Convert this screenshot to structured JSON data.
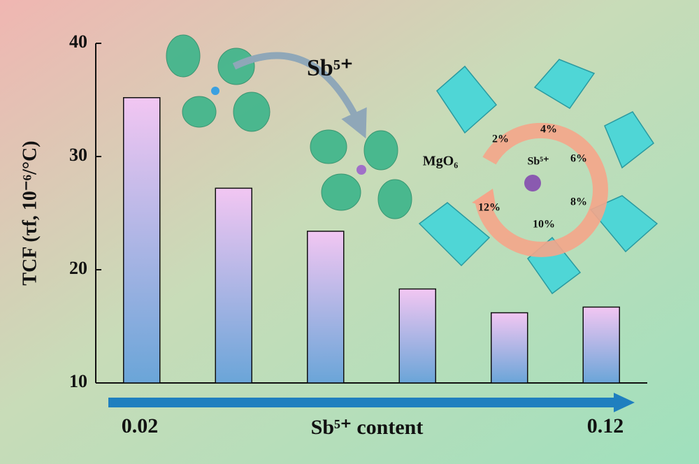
{
  "chart_data": {
    "type": "bar",
    "ylabel": "TCF (τf, 10⁻⁶/°C)",
    "xlabel": "Sb⁵⁺ content",
    "arrow_start_label": "0.02",
    "arrow_end_label": "0.12",
    "categories": [
      null,
      null,
      null,
      null,
      null,
      null
    ],
    "values": [
      35.2,
      27.2,
      23.4,
      18.3,
      16.2,
      16.7
    ],
    "ylim": [
      10,
      40
    ],
    "yticks": [
      10,
      20,
      30,
      40
    ],
    "bar_top_color": "#f2c6f2",
    "bar_bottom_color": "#6aa5d8",
    "illustration": {
      "ion": "Sb⁵⁺",
      "polyhedron": "MgO₆",
      "center_ion": "Sb⁵⁺",
      "cycle_labels": [
        "2%",
        "4%",
        "6%",
        "8%",
        "10%",
        "12%"
      ]
    }
  }
}
